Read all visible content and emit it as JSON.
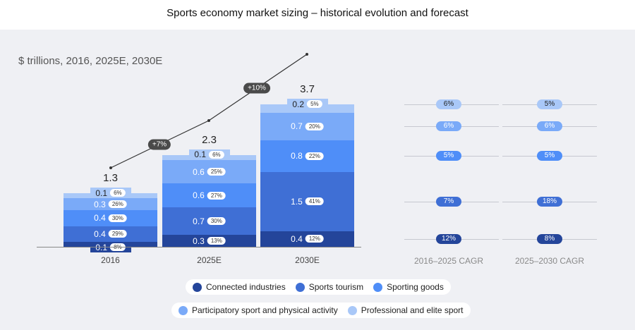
{
  "title": "Sports economy market sizing – historical evolution and forecast",
  "subtitle": "$ trillions, 2016, 2025E, 2030E",
  "chart_data": {
    "type": "bar",
    "stacked": true,
    "categories": [
      "2016",
      "2025E",
      "2030E"
    ],
    "totals": [
      "1.3",
      "2.3",
      "3.7"
    ],
    "series": [
      {
        "name": "Connected industries",
        "color": "#24459a",
        "values": [
          0.1,
          0.3,
          0.4
        ],
        "shares": [
          "8%",
          "13%",
          "12%"
        ],
        "cagr": [
          "12%",
          "8%"
        ]
      },
      {
        "name": "Sports tourism",
        "color": "#3f6fd5",
        "values": [
          0.4,
          0.7,
          1.5
        ],
        "shares": [
          "29%",
          "30%",
          "41%"
        ],
        "cagr": [
          "7%",
          "18%"
        ]
      },
      {
        "name": "Sporting goods",
        "color": "#4f8ef8",
        "values": [
          0.4,
          0.6,
          0.8
        ],
        "shares": [
          "30%",
          "27%",
          "22%"
        ],
        "cagr": [
          "5%",
          "5%"
        ]
      },
      {
        "name": "Participatory sport and physical activity",
        "color": "#7aaaf8",
        "values": [
          0.3,
          0.6,
          0.7
        ],
        "shares": [
          "26%",
          "25%",
          "20%"
        ],
        "cagr": [
          "6%",
          "6%"
        ]
      },
      {
        "name": "Professional and elite sport",
        "color": "#a9c8f8",
        "values": [
          0.1,
          0.1,
          0.2
        ],
        "shares": [
          "6%",
          "6%",
          "5%"
        ],
        "cagr": [
          "6%",
          "5%"
        ]
      }
    ],
    "growth_badges": [
      "+7%",
      "+10%"
    ],
    "cagr_headers": [
      "2016–2025 CAGR",
      "2025–2030 CAGR"
    ]
  }
}
